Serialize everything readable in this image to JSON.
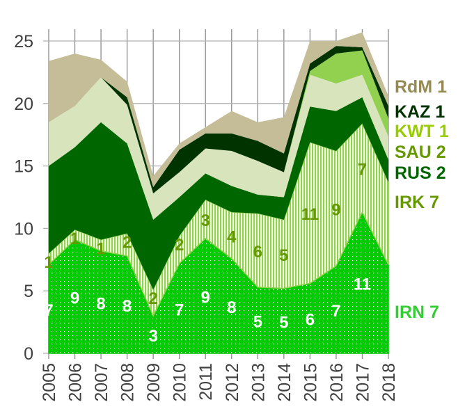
{
  "chart_data": {
    "type": "area",
    "stacked": true,
    "title": "",
    "xlabel": "",
    "ylabel": "",
    "x": [
      "2005",
      "2006",
      "2007",
      "2008",
      "2009",
      "2010",
      "2011",
      "2012",
      "2013",
      "2014",
      "2015",
      "2016",
      "2017",
      "2018"
    ],
    "ylim": [
      0,
      25
    ],
    "yticks": [
      "0",
      "5",
      "10",
      "15",
      "20",
      "25"
    ],
    "grid": true,
    "legend_placement": "right, inline labels",
    "series": [
      {
        "name": "IRN",
        "legend": "IRN 7",
        "color": "#00cc00",
        "label_color": "#33cc33",
        "pattern": "dots",
        "values": [
          7.1,
          9.1,
          8.2,
          7.8,
          3.0,
          7.2,
          9.2,
          7.6,
          5.3,
          5.2,
          5.6,
          7.0,
          11.3,
          7.1
        ],
        "data_labels": [
          "7",
          "9",
          "8",
          "8",
          "3",
          "7",
          "9",
          "8",
          "5",
          "5",
          "6",
          "7",
          "11",
          ""
        ],
        "data_label_color": "#ffffff"
      },
      {
        "name": "IRK",
        "legend": "IRK 7",
        "color": "#92d050",
        "label_color": "#669900",
        "pattern": "stripes",
        "values": [
          0.9,
          0.8,
          0.9,
          1.8,
          2.1,
          2.2,
          3.1,
          3.7,
          5.9,
          5.5,
          11.3,
          9.2,
          7.1,
          6.6
        ],
        "data_labels": [
          "1",
          "1",
          "1",
          "2",
          "2",
          "2",
          "3",
          "4",
          "6",
          "5",
          "11",
          "9",
          "7",
          ""
        ],
        "data_label_color": "#669900"
      },
      {
        "name": "RUS",
        "legend": "RUS 2",
        "color": "#006600",
        "label_color": "#006600",
        "values": [
          7.0,
          6.6,
          9.4,
          7.2,
          5.6,
          3.1,
          2.1,
          2.1,
          1.5,
          1.8,
          2.85,
          3.2,
          2.1,
          1.8
        ]
      },
      {
        "name": "SAU",
        "legend": "SAU 2",
        "color": "#d8e4bc",
        "label_color": "#669900",
        "values": [
          3.5,
          3.3,
          3.6,
          3.1,
          2.1,
          2.0,
          2.0,
          2.8,
          2.7,
          2.0,
          2.55,
          2.2,
          1.8,
          1.85
        ]
      },
      {
        "name": "KWT",
        "legend": "KWT 1",
        "color": "#92d050",
        "label_color": "#99cc00",
        "values": [
          0,
          0,
          0,
          0,
          0,
          0,
          0,
          0,
          0,
          0,
          0.3,
          2.4,
          1.95,
          1.45
        ]
      },
      {
        "name": "KAZ",
        "legend": "KAZ 1",
        "color": "#003300",
        "label_color": "#003300",
        "values": [
          0,
          0,
          0,
          0.6,
          0.5,
          1.8,
          1.2,
          1.4,
          1.6,
          1.5,
          0.6,
          0.6,
          0.25,
          1.0
        ]
      },
      {
        "name": "RdM",
        "legend": "RdM 1",
        "color": "#c4bd97",
        "label_color": "#948a54",
        "values": [
          4.9,
          4.2,
          1.4,
          1.25,
          0.9,
          0.5,
          0.5,
          1.8,
          1.5,
          2.9,
          1.8,
          0.4,
          1.2,
          0.8
        ]
      }
    ]
  }
}
